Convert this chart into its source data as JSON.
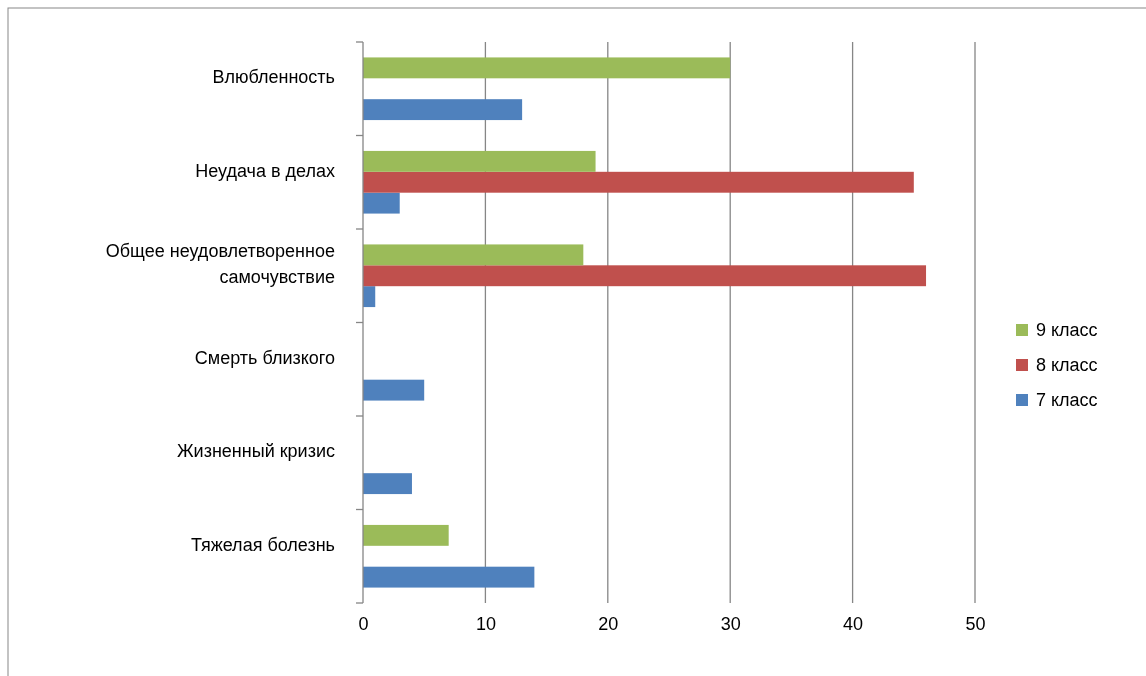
{
  "chart_data": {
    "type": "bar",
    "orientation": "horizontal",
    "categories": [
      "Влюбленность",
      "Неудача в делах",
      "Общее неудовлетворенное самочувствие",
      "Смерть близкого",
      "Жизненный кризис",
      "Тяжелая болезнь"
    ],
    "series": [
      {
        "name": "7 класс",
        "color": "#4f81bd",
        "values": [
          13,
          3,
          1,
          5,
          4,
          14
        ]
      },
      {
        "name": "8 класс",
        "color": "#c0504d",
        "values": [
          null,
          45,
          46,
          null,
          null,
          null
        ]
      },
      {
        "name": "9 класс",
        "color": "#9bbb59",
        "values": [
          30,
          19,
          18,
          null,
          null,
          7
        ]
      }
    ],
    "xlim": [
      0,
      50
    ],
    "xticks": [
      0,
      10,
      20,
      30,
      40,
      50
    ],
    "grid": "x",
    "legend": "right"
  }
}
